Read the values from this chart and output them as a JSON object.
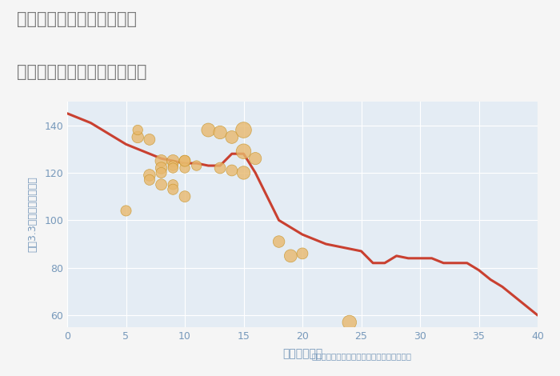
{
  "title_line1": "神奈川県横浜市緑区青砥町",
  "title_line2": "築年数別中古マンション価格",
  "xlabel": "築年数（年）",
  "ylabel": "坪（3.3㎡）単価（万円）",
  "annotation": "円の大きさは、取引のあった物件面積を示す",
  "background_color": "#f5f5f5",
  "plot_bg_color": "#e4ecf4",
  "line_color": "#c94030",
  "scatter_color": "#e8b86d",
  "scatter_edge_color": "#c8952a",
  "title_color": "#777777",
  "annotation_color": "#7799bb",
  "axis_color": "#7799bb",
  "tick_color": "#7799bb",
  "grid_color": "#ffffff",
  "xlim": [
    0,
    40
  ],
  "ylim": [
    55,
    150
  ],
  "xticks": [
    0,
    5,
    10,
    15,
    20,
    25,
    30,
    35,
    40
  ],
  "yticks": [
    60,
    80,
    100,
    120,
    140
  ],
  "line_x": [
    0,
    1,
    2,
    3,
    4,
    5,
    6,
    7,
    8,
    9,
    10,
    11,
    12,
    13,
    14,
    15,
    16,
    17,
    18,
    19,
    20,
    21,
    22,
    23,
    24,
    25,
    26,
    27,
    28,
    29,
    30,
    31,
    32,
    33,
    34,
    35,
    36,
    37,
    38,
    39,
    40
  ],
  "line_y": [
    145,
    143,
    141,
    138,
    135,
    132,
    130,
    128,
    126,
    125,
    124,
    124,
    123,
    123,
    128,
    128,
    120,
    110,
    100,
    97,
    94,
    92,
    90,
    89,
    88,
    87,
    82,
    82,
    85,
    84,
    84,
    84,
    82,
    82,
    82,
    79,
    75,
    72,
    68,
    64,
    60
  ],
  "scatter_x": [
    5,
    6,
    6,
    7,
    7,
    7,
    8,
    8,
    8,
    8,
    9,
    9,
    9,
    9,
    9,
    10,
    10,
    10,
    10,
    11,
    12,
    13,
    13,
    14,
    14,
    15,
    15,
    15,
    16,
    18,
    19,
    20,
    24
  ],
  "scatter_y": [
    104,
    135,
    138,
    134,
    119,
    117,
    125,
    122,
    120,
    115,
    125,
    123,
    122,
    115,
    113,
    125,
    122,
    125,
    110,
    123,
    138,
    137,
    122,
    135,
    121,
    138,
    129,
    120,
    126,
    91,
    85,
    86,
    57
  ],
  "scatter_sizes": [
    90,
    110,
    80,
    100,
    110,
    90,
    120,
    110,
    90,
    100,
    120,
    80,
    80,
    80,
    90,
    100,
    80,
    100,
    100,
    80,
    150,
    140,
    100,
    130,
    100,
    200,
    180,
    140,
    120,
    110,
    130,
    100,
    160
  ],
  "scatter_alpha": 0.8
}
